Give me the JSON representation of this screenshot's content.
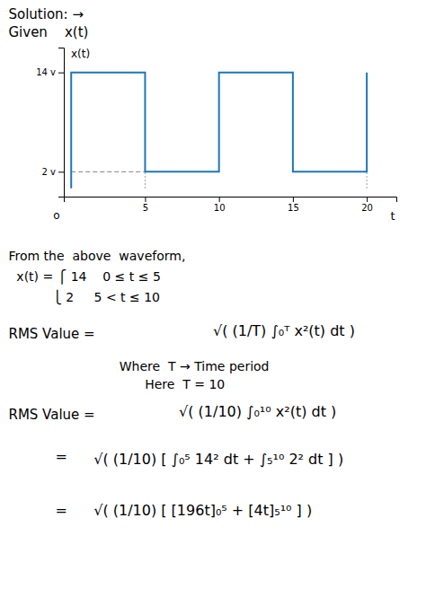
{
  "chart_data": {
    "type": "line",
    "x": [
      0,
      0,
      5,
      5,
      10,
      10,
      15,
      15,
      20,
      20
    ],
    "values": [
      0,
      14,
      14,
      2,
      2,
      14,
      14,
      2,
      2,
      14
    ],
    "xlim": [
      -0.5,
      22
    ],
    "ylim": [
      -1,
      17
    ],
    "xticks": [
      5,
      10,
      15,
      20
    ],
    "yticks": [
      {
        "value": 2,
        "label": "2 v"
      },
      {
        "value": 14,
        "label": "14 v"
      }
    ],
    "xlabel": "t",
    "ylabel": "x(t)",
    "origin_label": "o",
    "grid": false,
    "reference_lines": [
      {
        "x": [
          0,
          5
        ],
        "y": [
          2,
          2
        ],
        "line_style": "dashed",
        "color": "gray"
      },
      {
        "x": [
          5,
          5
        ],
        "y": [
          0,
          2
        ],
        "line_style": "dotted",
        "color": "gray"
      },
      {
        "x": [
          20,
          20
        ],
        "y": [
          0,
          2
        ],
        "line_style": "dotted",
        "color": "gray"
      }
    ],
    "annotations": [
      "Solution: →",
      "Given    x(t)",
      "From the  above  waveform,",
      "  x(t) = ⎧ 14    0 ≤ t ≤ 5",
      "           ⎩ 2     5 < t ≤ 10",
      "RMS Value =",
      "√( (1/T) ∫₀ᵀ x²(t) dt )",
      "Where  T → Time period",
      "Here  T = 10",
      "RMS Value =",
      "√( (1/10) ∫₀¹⁰ x²(t) dt )",
      "=",
      "√( (1/10) [ ∫₀⁵ 14² dt + ∫₅¹⁰ 2² dt ] )",
      "=",
      "√( (1/10) [ [196t]₀⁵ + [4t]₅¹⁰ ] )"
    ]
  }
}
